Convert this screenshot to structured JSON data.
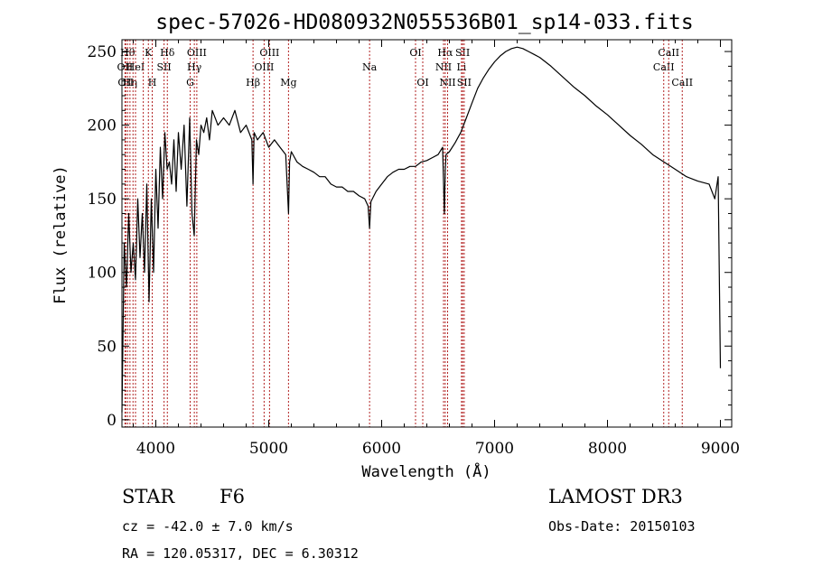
{
  "chart_data": {
    "type": "line",
    "title": "spec-57026-HD080932N055536B01_sp14-033.fits",
    "xlabel": "Wavelength (Å)",
    "ylabel": "Flux (relative)",
    "xlim": [
      3700,
      9100
    ],
    "ylim": [
      -5,
      258
    ],
    "xticks": [
      4000,
      5000,
      6000,
      7000,
      8000,
      9000
    ],
    "yticks": [
      0,
      50,
      100,
      150,
      200,
      250
    ],
    "series": [
      {
        "name": "flux",
        "x": [
          3700,
          3720,
          3740,
          3760,
          3780,
          3800,
          3820,
          3840,
          3860,
          3880,
          3900,
          3920,
          3940,
          3960,
          3980,
          4000,
          4020,
          4040,
          4060,
          4080,
          4100,
          4120,
          4140,
          4160,
          4180,
          4200,
          4225,
          4250,
          4275,
          4300,
          4320,
          4340,
          4360,
          4380,
          4400,
          4425,
          4450,
          4475,
          4500,
          4550,
          4600,
          4650,
          4700,
          4750,
          4800,
          4850,
          4861,
          4870,
          4900,
          4950,
          5000,
          5050,
          5100,
          5150,
          5175,
          5185,
          5200,
          5250,
          5300,
          5350,
          5400,
          5450,
          5500,
          5550,
          5600,
          5650,
          5700,
          5750,
          5800,
          5850,
          5880,
          5893,
          5905,
          5950,
          6000,
          6050,
          6100,
          6150,
          6200,
          6250,
          6300,
          6350,
          6400,
          6450,
          6500,
          6540,
          6555,
          6563,
          6570,
          6600,
          6650,
          6700,
          6750,
          6800,
          6850,
          6900,
          6950,
          7000,
          7050,
          7100,
          7150,
          7200,
          7250,
          7300,
          7350,
          7400,
          7450,
          7500,
          7600,
          7700,
          7800,
          7900,
          8000,
          8100,
          8200,
          8300,
          8400,
          8500,
          8600,
          8700,
          8800,
          8900,
          8950,
          8980,
          9000
        ],
        "y": [
          5,
          120,
          90,
          140,
          100,
          120,
          95,
          150,
          110,
          140,
          100,
          160,
          80,
          150,
          100,
          170,
          130,
          185,
          150,
          195,
          170,
          175,
          160,
          190,
          155,
          195,
          170,
          200,
          145,
          205,
          140,
          125,
          190,
          180,
          200,
          195,
          205,
          190,
          210,
          200,
          205,
          200,
          210,
          195,
          200,
          190,
          160,
          195,
          190,
          195,
          185,
          190,
          185,
          180,
          140,
          175,
          182,
          175,
          172,
          170,
          168,
          165,
          165,
          160,
          158,
          158,
          155,
          155,
          152,
          150,
          145,
          130,
          148,
          155,
          160,
          165,
          168,
          170,
          170,
          172,
          172,
          175,
          176,
          178,
          180,
          185,
          140,
          170,
          180,
          182,
          188,
          195,
          205,
          215,
          225,
          232,
          238,
          243,
          247,
          250,
          252,
          253,
          252,
          250,
          248,
          246,
          243,
          240,
          233,
          226,
          220,
          213,
          207,
          200,
          193,
          187,
          180,
          175,
          170,
          165,
          162,
          160,
          150,
          165,
          35
        ]
      }
    ],
    "line_markers": [
      {
        "wavelength": 3727,
        "label": "OII",
        "row": 2
      },
      {
        "wavelength": 3734,
        "label": "OII",
        "row": 3
      },
      {
        "wavelength": 3750,
        "label": "Hθ",
        "row": 1
      },
      {
        "wavelength": 3771,
        "label": "Hη",
        "row": 3
      },
      {
        "wavelength": 3798,
        "label": "",
        "row": 0
      },
      {
        "wavelength": 3820,
        "label": "HeI",
        "row": 2
      },
      {
        "wavelength": 3889,
        "label": "",
        "row": 0
      },
      {
        "wavelength": 3934,
        "label": "K",
        "row": 1
      },
      {
        "wavelength": 3968,
        "label": "H",
        "row": 3
      },
      {
        "wavelength": 4073,
        "label": "SII",
        "row": 2
      },
      {
        "wavelength": 4102,
        "label": "Hδ",
        "row": 1
      },
      {
        "wavelength": 4304,
        "label": "G",
        "row": 3
      },
      {
        "wavelength": 4341,
        "label": "Hγ",
        "row": 2
      },
      {
        "wavelength": 4363,
        "label": "OIII",
        "row": 1
      },
      {
        "wavelength": 4861,
        "label": "Hβ",
        "row": 3
      },
      {
        "wavelength": 4959,
        "label": "OIII",
        "row": 2
      },
      {
        "wavelength": 5007,
        "label": "OIII",
        "row": 1
      },
      {
        "wavelength": 5175,
        "label": "Mg",
        "row": 3
      },
      {
        "wavelength": 5893,
        "label": "Na",
        "row": 2
      },
      {
        "wavelength": 6300,
        "label": "OI",
        "row": 1
      },
      {
        "wavelength": 6364,
        "label": "OI",
        "row": 3
      },
      {
        "wavelength": 6548,
        "label": "NII",
        "row": 2
      },
      {
        "wavelength": 6563,
        "label": "Hα",
        "row": 1
      },
      {
        "wavelength": 6584,
        "label": "NII",
        "row": 3
      },
      {
        "wavelength": 6707,
        "label": "Li",
        "row": 2
      },
      {
        "wavelength": 6717,
        "label": "SII",
        "row": 1
      },
      {
        "wavelength": 6731,
        "label": "SII",
        "row": 3
      },
      {
        "wavelength": 8498,
        "label": "CaII",
        "row": 2
      },
      {
        "wavelength": 8542,
        "label": "CaII",
        "row": 1
      },
      {
        "wavelength": 8662,
        "label": "CaII",
        "row": 3
      }
    ],
    "marker_color": "#b22222"
  },
  "info": {
    "object_class": "STAR",
    "subclass": "F6",
    "survey": "LAMOST DR3",
    "redshift": "cz = -42.0 ± 7.0 km/s",
    "obs_date": "Obs-Date: 20150103",
    "coords": "RA = 120.05317, DEC =   6.30312"
  }
}
